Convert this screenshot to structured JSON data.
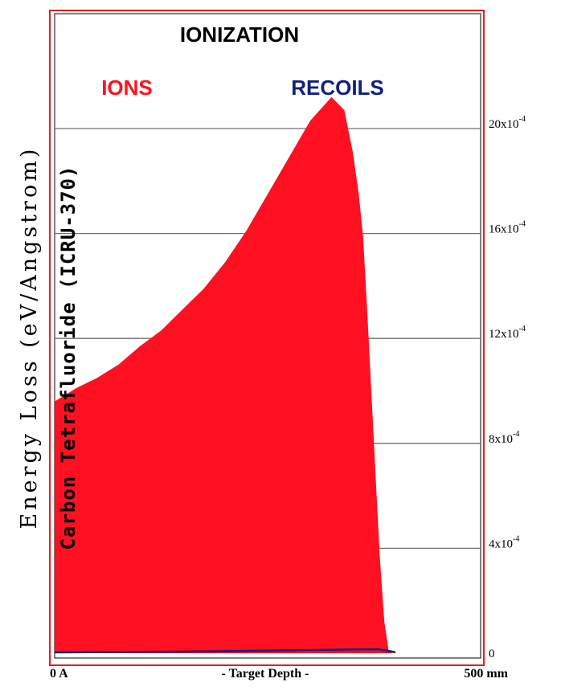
{
  "chart_data": {
    "type": "area",
    "title": "IONIZATION",
    "ylabel": "Energy Loss (eV/Angstrom)",
    "target_label": "Carbon Tetrafluoride (ICRU-370)",
    "xlabel": "- Target Depth -",
    "xtick_labels": {
      "start": "0 A",
      "end": "500 mm"
    },
    "xlim": [
      0,
      500
    ],
    "ylim": [
      0,
      0.0022
    ],
    "yticks": [
      {
        "value": 0,
        "mantissa": "0",
        "exponent": ""
      },
      {
        "value": 0.0004,
        "mantissa": "4x10",
        "exponent": "-4"
      },
      {
        "value": 0.0008,
        "mantissa": "8x10",
        "exponent": "-4"
      },
      {
        "value": 0.0012,
        "mantissa": "12x10",
        "exponent": "-4"
      },
      {
        "value": 0.0016,
        "mantissa": "16x10",
        "exponent": "-4"
      },
      {
        "value": 0.002,
        "mantissa": "20x10",
        "exponent": "-4"
      }
    ],
    "grid": true,
    "series": [
      {
        "name": "IONS",
        "color": "#ff1020",
        "x": [
          0,
          25,
          50,
          75,
          100,
          125,
          150,
          175,
          200,
          225,
          250,
          275,
          300,
          325,
          340,
          350,
          357,
          362,
          367,
          372,
          377,
          382,
          387,
          392,
          397,
          400,
          405
        ],
        "y": [
          0.00096,
          0.00101,
          0.00105,
          0.0011,
          0.00117,
          0.00123,
          0.00131,
          0.00139,
          0.00149,
          0.00161,
          0.00175,
          0.00189,
          0.00203,
          0.00212,
          0.00207,
          0.00191,
          0.00175,
          0.00159,
          0.0013,
          0.00098,
          0.00066,
          0.00035,
          0.00012,
          1e-05,
          0.0,
          0.0,
          0.0
        ]
      },
      {
        "name": "RECOILS",
        "color": "#102080",
        "x": [
          0,
          100,
          150,
          200,
          250,
          300,
          350,
          380,
          395,
          400
        ],
        "y": [
          0.0,
          2e-06,
          3e-06,
          5e-06,
          7e-06,
          9e-06,
          1.1e-05,
          1.2e-05,
          4e-06,
          0.0
        ]
      }
    ],
    "legend": "top",
    "border_color": "#e02020"
  }
}
